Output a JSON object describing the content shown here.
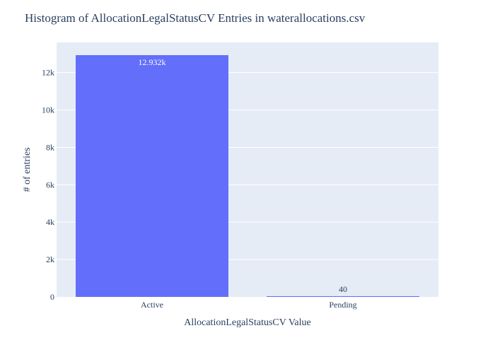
{
  "chart_data": {
    "type": "bar",
    "title": "Histogram of AllocationLegalStatusCV Entries in waterallocations.csv",
    "xlabel": "AllocationLegalStatusCV Value",
    "ylabel": "# of entries",
    "categories": [
      "Active",
      "Pending"
    ],
    "values": [
      12932,
      40
    ],
    "data_labels": [
      "12.932k",
      "40"
    ],
    "ylim": [
      0,
      13613
    ],
    "yticks": [
      0,
      2000,
      4000,
      6000,
      8000,
      10000,
      12000
    ],
    "ytick_labels": [
      "0",
      "2k",
      "4k",
      "6k",
      "8k",
      "10k",
      "12k"
    ],
    "grid": true,
    "legend": "none",
    "colors": {
      "bar": "#636efa",
      "plot_bg": "#e5ecf6",
      "grid": "#ffffff",
      "text": "#2a3f5f",
      "label_inside": "#ffffff",
      "label_outside": "#2a3f5f"
    }
  }
}
